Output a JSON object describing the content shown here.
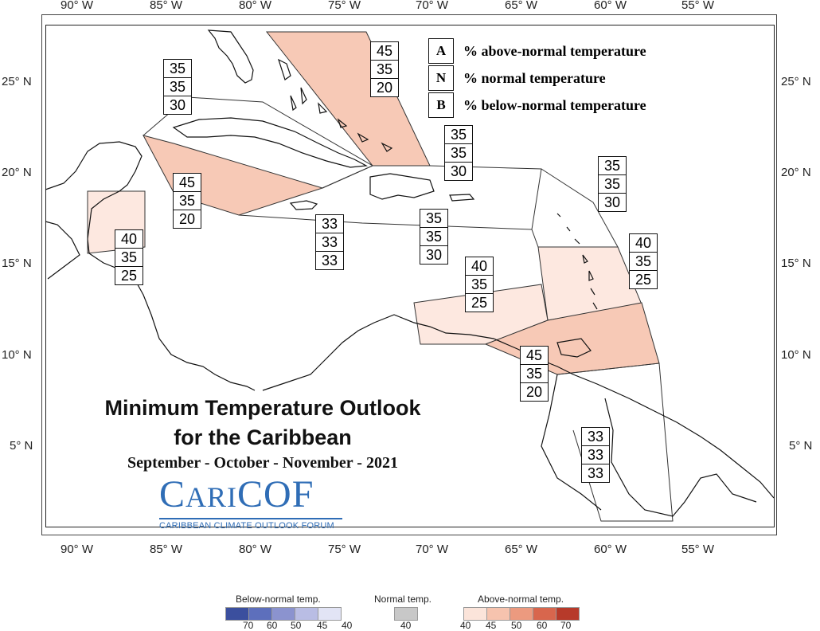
{
  "axes": {
    "lon_labels": [
      "90° W",
      "85° W",
      "80° W",
      "75° W",
      "70° W",
      "65° W",
      "60° W",
      "55° W"
    ],
    "lat_labels": [
      "25° N",
      "20° N",
      "15° N",
      "10° N",
      "5° N"
    ]
  },
  "key": {
    "items": [
      {
        "letter": "A",
        "text": "% above-normal temperature"
      },
      {
        "letter": "N",
        "text": "% normal temperature"
      },
      {
        "letter": "B",
        "text": "% below-normal temperature"
      }
    ]
  },
  "title": {
    "line1": "Minimum Temperature Outlook",
    "line2": "for the Caribbean",
    "line3": "September - October - November - 2021"
  },
  "logo": {
    "main_c1": "C",
    "main_ari": "ARI",
    "main_cof": "COF",
    "subtitle": "CARIBBEAN CLIMATE OUTLOOK FORUM"
  },
  "regions": [
    {
      "name": "bahamas",
      "A": "45",
      "N": "35",
      "B": "20"
    },
    {
      "name": "cuba",
      "A": "35",
      "N": "35",
      "B": "30"
    },
    {
      "name": "cayman",
      "A": "45",
      "N": "35",
      "B": "20"
    },
    {
      "name": "belize",
      "A": "40",
      "N": "35",
      "B": "25"
    },
    {
      "name": "jamaica",
      "A": "33",
      "N": "33",
      "B": "33"
    },
    {
      "name": "hispaniola-north",
      "A": "35",
      "N": "35",
      "B": "30"
    },
    {
      "name": "hispaniola-puerto-rico",
      "A": "35",
      "N": "35",
      "B": "30"
    },
    {
      "name": "leeward-islands",
      "A": "35",
      "N": "35",
      "B": "30"
    },
    {
      "name": "windward-islands",
      "A": "40",
      "N": "35",
      "B": "25"
    },
    {
      "name": "abc-islands",
      "A": "40",
      "N": "35",
      "B": "25"
    },
    {
      "name": "trinidad",
      "A": "45",
      "N": "35",
      "B": "20"
    },
    {
      "name": "guianas",
      "A": "33",
      "N": "33",
      "B": "33"
    }
  ],
  "legend": {
    "below_title": "Below-normal temp.",
    "normal_title": "Normal temp.",
    "above_title": "Above-normal temp.",
    "below_ticks": [
      "70",
      "60",
      "50",
      "45",
      "40"
    ],
    "normal_ticks": [
      "40"
    ],
    "above_ticks": [
      "40",
      "45",
      "50",
      "60",
      "70"
    ],
    "below_colors": [
      "#3b4f9e",
      "#5d6fbc",
      "#8b93cf",
      "#b9bde4",
      "#e2e4f5"
    ],
    "normal_color": "#c8c8c8",
    "above_colors": [
      "#fbe4da",
      "#f6c3ae",
      "#ec9a7f",
      "#d8664d",
      "#b73a2a"
    ]
  },
  "colors": {
    "above_40": "#fde8e0",
    "above_45": "#f7c9b6"
  }
}
